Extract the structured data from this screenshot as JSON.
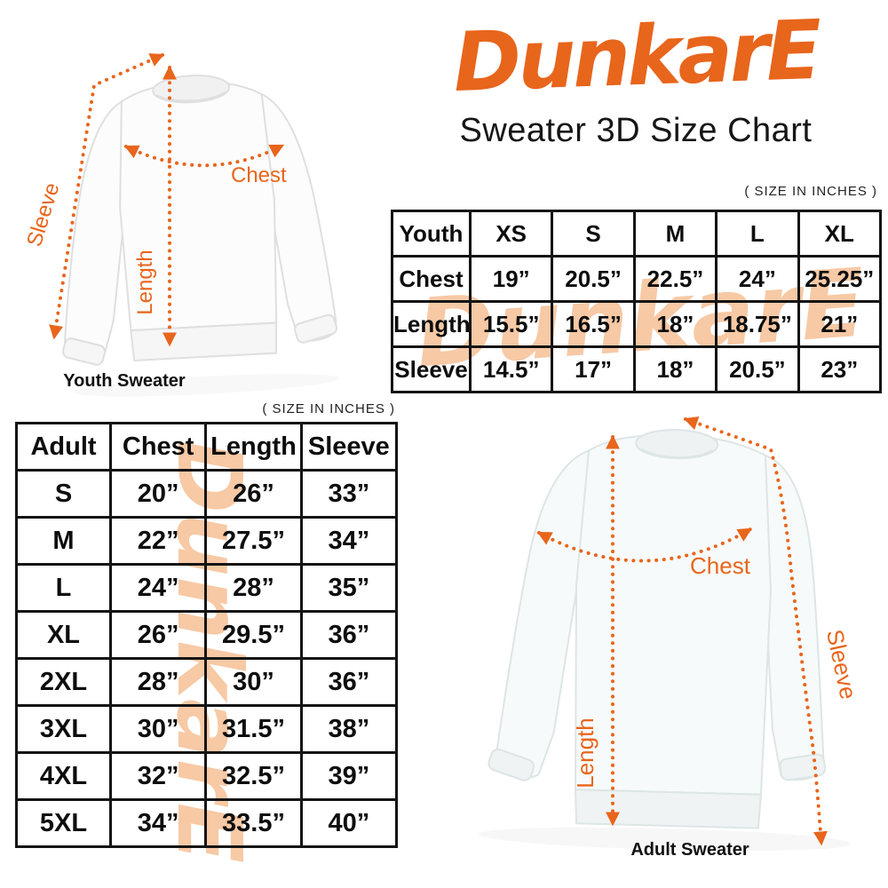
{
  "brand": {
    "logo_text": "DunkarE",
    "title": "Sweater 3D Size Chart",
    "accent_color": "#E8651C",
    "watermark_color": "#F7C9A5"
  },
  "notes": {
    "youth": "( SIZE IN INCHES )",
    "adult": "( SIZE IN INCHES )"
  },
  "youth_table": {
    "header": [
      "Youth",
      "XS",
      "S",
      "M",
      "L",
      "XL"
    ],
    "rows": [
      [
        "Chest",
        "19”",
        "20.5”",
        "22.5”",
        "24”",
        "25.25”"
      ],
      [
        "Length",
        "15.5”",
        "16.5”",
        "18”",
        "18.75”",
        "21”"
      ],
      [
        "Sleeve",
        "14.5”",
        "17”",
        "18”",
        "20.5”",
        "23”"
      ]
    ]
  },
  "adult_table": {
    "header": [
      "Adult",
      "Chest",
      "Length",
      "Sleeve"
    ],
    "rows": [
      [
        "S",
        "20”",
        "26”",
        "33”"
      ],
      [
        "M",
        "22”",
        "27.5”",
        "34”"
      ],
      [
        "L",
        "24”",
        "28”",
        "35”"
      ],
      [
        "XL",
        "26”",
        "29.5”",
        "36”"
      ],
      [
        "2XL",
        "28”",
        "30”",
        "36”"
      ],
      [
        "3XL",
        "30”",
        "31.5”",
        "38”"
      ],
      [
        "4XL",
        "32”",
        "32.5”",
        "39”"
      ],
      [
        "5XL",
        "34”",
        "33.5”",
        "40”"
      ]
    ]
  },
  "diagrams": {
    "youth": {
      "caption": "Youth Sweater",
      "chest_label": "Chest",
      "length_label": "Length",
      "sleeve_label": "Sleeve"
    },
    "adult": {
      "caption": "Adult Sweater",
      "chest_label": "Chest",
      "length_label": "Length",
      "sleeve_label": "Sleeve"
    }
  },
  "chart_data": [
    {
      "type": "table",
      "title": "Sweater 3D Size Chart — Youth ( SIZE IN INCHES )",
      "columns": [
        "Youth",
        "XS",
        "S",
        "M",
        "L",
        "XL"
      ],
      "rows": [
        [
          "Chest",
          19,
          20.5,
          22.5,
          24,
          25.25
        ],
        [
          "Length",
          15.5,
          16.5,
          18,
          18.75,
          21
        ],
        [
          "Sleeve",
          14.5,
          17,
          18,
          20.5,
          23
        ]
      ],
      "units": "inches"
    },
    {
      "type": "table",
      "title": "Sweater 3D Size Chart — Adult ( SIZE IN INCHES )",
      "columns": [
        "Adult",
        "Chest",
        "Length",
        "Sleeve"
      ],
      "rows": [
        [
          "S",
          20,
          26,
          33
        ],
        [
          "M",
          22,
          27.5,
          34
        ],
        [
          "L",
          24,
          28,
          35
        ],
        [
          "XL",
          26,
          29.5,
          36
        ],
        [
          "2XL",
          28,
          30,
          36
        ],
        [
          "3XL",
          30,
          31.5,
          38
        ],
        [
          "4XL",
          32,
          32.5,
          39
        ],
        [
          "5XL",
          34,
          33.5,
          40
        ]
      ],
      "units": "inches"
    }
  ]
}
